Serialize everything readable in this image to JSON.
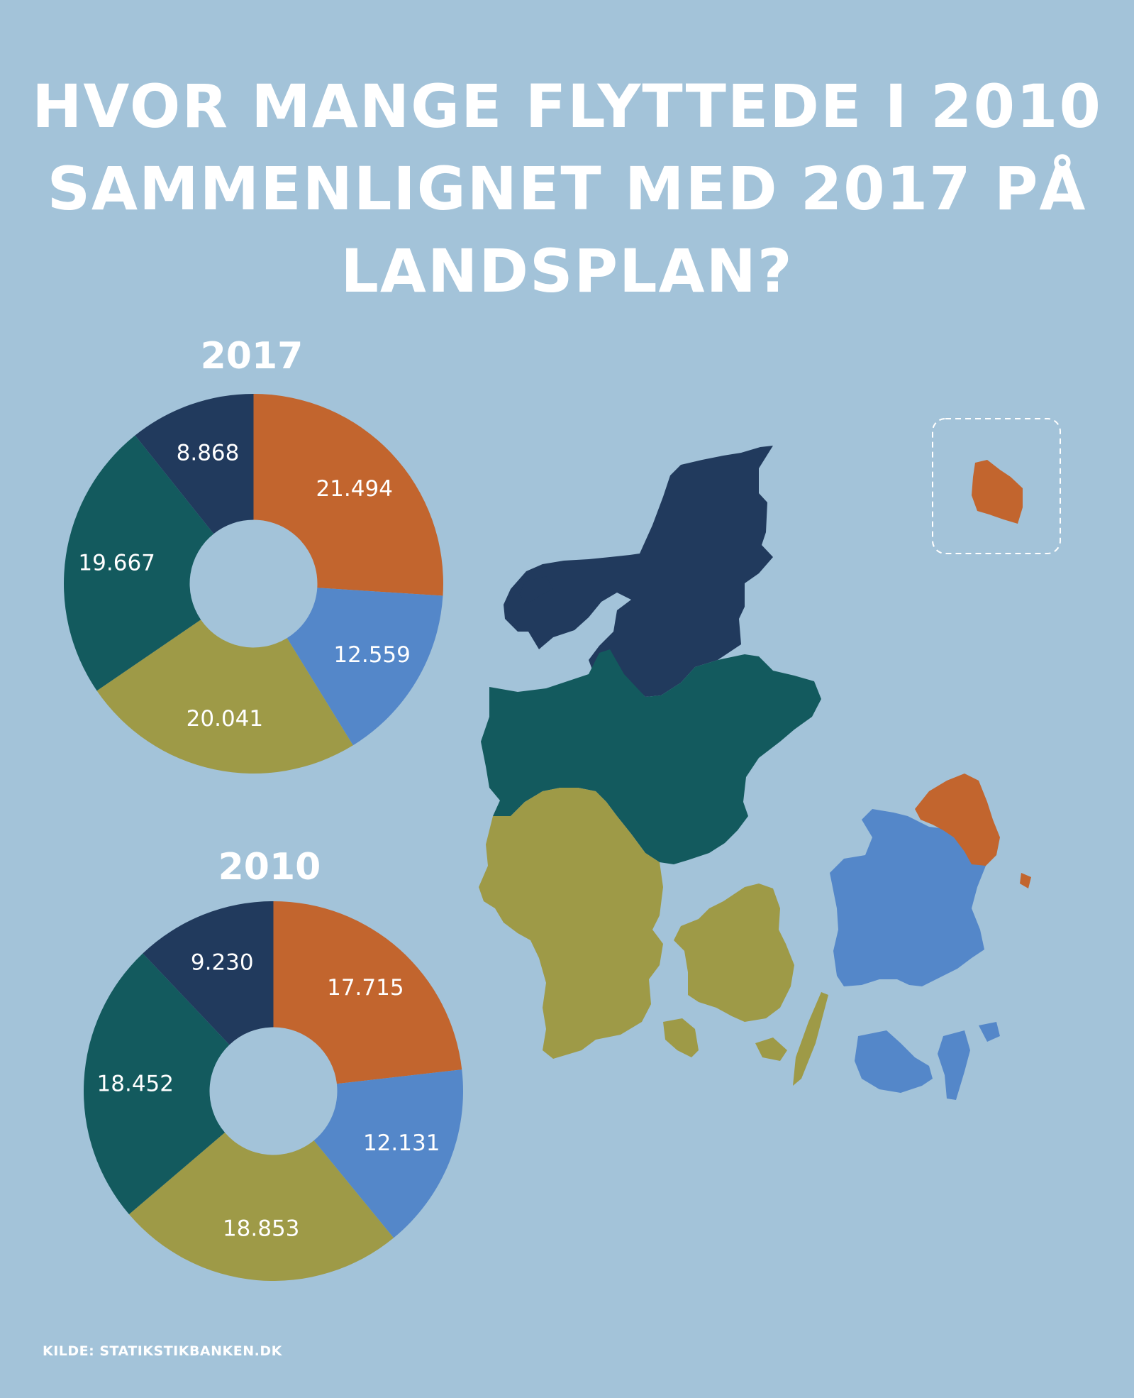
{
  "title_lines": [
    "HVOR MANGE FLYTTEDE I 2010",
    "SAMMENLIGNET MED 2017 PÅ",
    "LANDSPLAN?"
  ],
  "source": "KILDE: STATIKSTIKBANKEN.DK",
  "colors": {
    "background": "#a3c3d9",
    "hovedstaden": "#c2652e",
    "sjaelland": "#5487c9",
    "syddanmark": "#9e9a47",
    "midtjylland": "#135a5e",
    "nordjylland": "#213a5d"
  },
  "chart_data": [
    {
      "type": "pie",
      "title": "2017",
      "labels": [
        "21.494",
        "12.559",
        "20.041",
        "19.667",
        "8.868"
      ],
      "values": [
        21494,
        12559,
        20041,
        19667,
        8868
      ],
      "colors": [
        "#c2652e",
        "#5487c9",
        "#9e9a47",
        "#135a5e",
        "#213a5d"
      ],
      "donut": true
    },
    {
      "type": "pie",
      "title": "2010",
      "labels": [
        "17.715",
        "12.131",
        "18.853",
        "18.452",
        "9.230"
      ],
      "values": [
        17715,
        12131,
        18853,
        18452,
        9230
      ],
      "colors": [
        "#c2652e",
        "#5487c9",
        "#9e9a47",
        "#135a5e",
        "#213a5d"
      ],
      "donut": true
    }
  ]
}
